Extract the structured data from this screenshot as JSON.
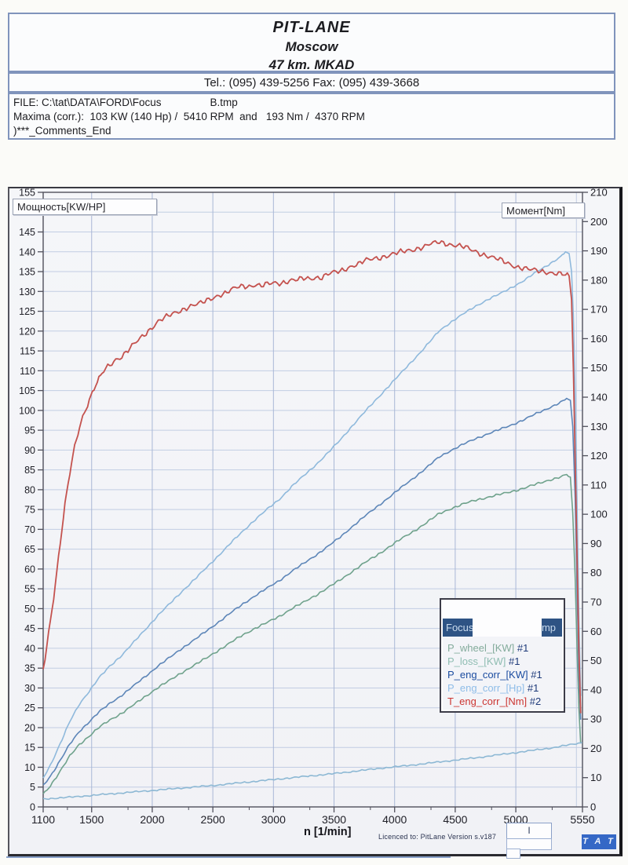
{
  "header": {
    "title1": "PIT-LANE",
    "title2": "Moscow",
    "title3": "47 km. MKAD",
    "tel_line": "Tel.: (095) 439-5256 Fax: (095) 439-3668",
    "file_label": "FILE: C:\\tat\\DATA\\FORD\\Focus",
    "file_suffix": "B.tmp",
    "maxima_line": "Maxima (corr.):  103 KW (140 Hp) /  5410 RPM  and   193 Nm /  4370 RPM",
    "comments_line": ")***_Comments_End"
  },
  "footer": {
    "license_text": "Licenced to: PitLane   Version s.v187",
    "scroll_glyph": "I",
    "logo_text": "T A T"
  },
  "colors": {
    "grid": "#c2cde3",
    "grid_major": "#a9b7d6",
    "axis": "#50505c",
    "tick_text": "#202028",
    "header_border": "#8094bc",
    "titlebar_blue": "#2e5384",
    "logo_blue": "#3568c6",
    "legend_suffix": "#1e3a7a"
  },
  "chart_data": {
    "type": "line",
    "title": "",
    "xlabel": "n [1/min]",
    "x_range": [
      1100,
      5550
    ],
    "x_ticks": [
      1100,
      1500,
      2000,
      2500,
      3000,
      3500,
      4000,
      4500,
      5000,
      5550
    ],
    "grid": true,
    "left_axis": {
      "label": "Мощность[KW/HP]",
      "min": 0,
      "max": 155,
      "step": 5
    },
    "right_axis": {
      "label": "Момент[Nm]",
      "min": 0,
      "max": 210,
      "step": 10
    },
    "legend": {
      "position": "bottom-right",
      "window_title_left": "Focus",
      "window_title_right": "tmp"
    },
    "maxima": {
      "power_kw": 103,
      "power_hp": 140,
      "power_rpm": 5410,
      "torque_nm": 193,
      "torque_rpm": 4370
    },
    "series": [
      {
        "name": "P_wheel_[KW] #1",
        "axis": "left",
        "color": "#6fa28c",
        "legend_color": "#83ab9b",
        "jitter": 0.18,
        "points": [
          [
            1100,
            3.2
          ],
          [
            1160,
            5.4
          ],
          [
            1240,
            9.0
          ],
          [
            1320,
            12.8
          ],
          [
            1400,
            15.8
          ],
          [
            1480,
            17.9
          ],
          [
            1560,
            20.0
          ],
          [
            1650,
            21.9
          ],
          [
            1750,
            23.7
          ],
          [
            1850,
            25.8
          ],
          [
            1950,
            28.0
          ],
          [
            2050,
            30.2
          ],
          [
            2150,
            32.0
          ],
          [
            2250,
            34.0
          ],
          [
            2350,
            35.8
          ],
          [
            2450,
            37.6
          ],
          [
            2550,
            39.6
          ],
          [
            2650,
            41.5
          ],
          [
            2750,
            43.4
          ],
          [
            2850,
            45.1
          ],
          [
            2950,
            46.5
          ],
          [
            3050,
            48.1
          ],
          [
            3150,
            50.0
          ],
          [
            3250,
            51.6
          ],
          [
            3350,
            53.4
          ],
          [
            3450,
            55.3
          ],
          [
            3550,
            57.2
          ],
          [
            3650,
            59.4
          ],
          [
            3750,
            61.5
          ],
          [
            3850,
            63.4
          ],
          [
            3950,
            65.5
          ],
          [
            4050,
            67.5
          ],
          [
            4150,
            69.4
          ],
          [
            4250,
            71.4
          ],
          [
            4370,
            74.0
          ],
          [
            4470,
            75.3
          ],
          [
            4570,
            76.4
          ],
          [
            4670,
            77.4
          ],
          [
            4770,
            78.1
          ],
          [
            4870,
            78.8
          ],
          [
            4970,
            79.6
          ],
          [
            5070,
            80.4
          ],
          [
            5170,
            81.4
          ],
          [
            5270,
            82.4
          ],
          [
            5370,
            83.2
          ],
          [
            5420,
            83.8
          ],
          [
            5450,
            83.0
          ],
          [
            5470,
            74.0
          ],
          [
            5490,
            58.0
          ],
          [
            5505,
            40.0
          ],
          [
            5520,
            25.0
          ],
          [
            5535,
            16.0
          ]
        ]
      },
      {
        "name": "P_loss_[KW] #1",
        "axis": "left",
        "color": "#8db8d4",
        "legend_color": "#8fbdb2",
        "jitter": 0.12,
        "points": [
          [
            1100,
            2.0
          ],
          [
            1300,
            2.4
          ],
          [
            1500,
            2.9
          ],
          [
            1700,
            3.4
          ],
          [
            1900,
            3.9
          ],
          [
            2100,
            4.4
          ],
          [
            2300,
            4.9
          ],
          [
            2500,
            5.4
          ],
          [
            2700,
            6.0
          ],
          [
            2900,
            6.6
          ],
          [
            3100,
            7.2
          ],
          [
            3300,
            7.8
          ],
          [
            3500,
            8.4
          ],
          [
            3700,
            9.1
          ],
          [
            3900,
            9.8
          ],
          [
            4100,
            10.4
          ],
          [
            4300,
            11.1
          ],
          [
            4500,
            11.8
          ],
          [
            4700,
            12.5
          ],
          [
            4900,
            13.3
          ],
          [
            5100,
            14.1
          ],
          [
            5300,
            14.9
          ],
          [
            5450,
            15.7
          ],
          [
            5548,
            16.2
          ]
        ]
      },
      {
        "name": "P_eng_corr_[KW] #1",
        "axis": "left",
        "color": "#5d86b8",
        "legend_color": "#1c4da0",
        "jitter": 0.16,
        "points": [
          [
            1100,
            5.4
          ],
          [
            1160,
            7.8
          ],
          [
            1240,
            11.7
          ],
          [
            1320,
            15.8
          ],
          [
            1400,
            19.1
          ],
          [
            1480,
            21.5
          ],
          [
            1560,
            23.9
          ],
          [
            1650,
            26.1
          ],
          [
            1750,
            28.2
          ],
          [
            1850,
            30.6
          ],
          [
            1950,
            33.1
          ],
          [
            2050,
            35.6
          ],
          [
            2150,
            37.8
          ],
          [
            2250,
            40.1
          ],
          [
            2350,
            42.2
          ],
          [
            2450,
            44.4
          ],
          [
            2550,
            46.7
          ],
          [
            2650,
            49.0
          ],
          [
            2750,
            51.2
          ],
          [
            2850,
            53.3
          ],
          [
            2950,
            55.2
          ],
          [
            3050,
            57.1
          ],
          [
            3150,
            59.4
          ],
          [
            3250,
            61.4
          ],
          [
            3350,
            63.5
          ],
          [
            3450,
            65.7
          ],
          [
            3550,
            68.0
          ],
          [
            3650,
            70.7
          ],
          [
            3750,
            73.2
          ],
          [
            3850,
            75.6
          ],
          [
            3950,
            78.0
          ],
          [
            4050,
            80.4
          ],
          [
            4150,
            82.8
          ],
          [
            4250,
            85.2
          ],
          [
            4370,
            88.3
          ],
          [
            4470,
            90.0
          ],
          [
            4570,
            91.5
          ],
          [
            4670,
            92.9
          ],
          [
            4770,
            94.1
          ],
          [
            4870,
            95.2
          ],
          [
            4970,
            96.4
          ],
          [
            5070,
            97.7
          ],
          [
            5170,
            99.2
          ],
          [
            5270,
            100.6
          ],
          [
            5370,
            102.0
          ],
          [
            5420,
            103.0
          ],
          [
            5450,
            102.3
          ],
          [
            5470,
            96.0
          ],
          [
            5490,
            78.0
          ],
          [
            5505,
            55.0
          ],
          [
            5520,
            34.0
          ],
          [
            5535,
            22.0
          ]
        ]
      },
      {
        "name": "P_eng_corr_[Hp] #1",
        "axis": "left",
        "color": "#8fb9dc",
        "legend_color": "#8fbde8",
        "jitter": 0.16,
        "points": [
          [
            1100,
            7.3
          ],
          [
            1160,
            10.6
          ],
          [
            1240,
            15.9
          ],
          [
            1320,
            21.5
          ],
          [
            1400,
            26.0
          ],
          [
            1480,
            29.2
          ],
          [
            1560,
            32.5
          ],
          [
            1650,
            35.5
          ],
          [
            1750,
            38.3
          ],
          [
            1850,
            41.6
          ],
          [
            1950,
            45.0
          ],
          [
            2050,
            48.4
          ],
          [
            2150,
            51.4
          ],
          [
            2250,
            54.5
          ],
          [
            2350,
            57.4
          ],
          [
            2450,
            60.4
          ],
          [
            2550,
            63.5
          ],
          [
            2650,
            66.6
          ],
          [
            2750,
            69.6
          ],
          [
            2850,
            72.5
          ],
          [
            2950,
            75.1
          ],
          [
            3050,
            77.6
          ],
          [
            3150,
            80.8
          ],
          [
            3250,
            83.5
          ],
          [
            3350,
            86.3
          ],
          [
            3450,
            89.3
          ],
          [
            3550,
            92.5
          ],
          [
            3650,
            96.1
          ],
          [
            3750,
            99.5
          ],
          [
            3850,
            102.8
          ],
          [
            3950,
            106.1
          ],
          [
            4050,
            109.3
          ],
          [
            4150,
            112.6
          ],
          [
            4250,
            115.9
          ],
          [
            4370,
            120.1
          ],
          [
            4470,
            122.4
          ],
          [
            4570,
            124.4
          ],
          [
            4670,
            126.3
          ],
          [
            4770,
            128.0
          ],
          [
            4870,
            129.4
          ],
          [
            4970,
            131.1
          ],
          [
            5070,
            132.8
          ],
          [
            5170,
            134.9
          ],
          [
            5270,
            136.8
          ],
          [
            5370,
            138.7
          ],
          [
            5410,
            140.0
          ],
          [
            5440,
            139.3
          ],
          [
            5460,
            135.0
          ],
          [
            5475,
            124.0
          ],
          [
            5490,
            104.0
          ],
          [
            5505,
            76.0
          ],
          [
            5520,
            48.0
          ],
          [
            5535,
            28.0
          ]
        ]
      },
      {
        "name": "T_eng_corr_[Nm] #2",
        "axis": "right",
        "color": "#c4524e",
        "legend_color": "#cc3531",
        "jitter": 0.62,
        "points": [
          [
            1100,
            47
          ],
          [
            1130,
            55
          ],
          [
            1160,
            64
          ],
          [
            1200,
            76
          ],
          [
            1240,
            90
          ],
          [
            1280,
            103
          ],
          [
            1320,
            114
          ],
          [
            1360,
            123
          ],
          [
            1400,
            130
          ],
          [
            1440,
            135
          ],
          [
            1480,
            139
          ],
          [
            1520,
            143
          ],
          [
            1560,
            146
          ],
          [
            1600,
            149
          ],
          [
            1650,
            151
          ],
          [
            1700,
            153
          ],
          [
            1750,
            154
          ],
          [
            1800,
            156
          ],
          [
            1850,
            158
          ],
          [
            1900,
            160
          ],
          [
            1950,
            162
          ],
          [
            2000,
            164
          ],
          [
            2050,
            166
          ],
          [
            2100,
            167
          ],
          [
            2150,
            168
          ],
          [
            2200,
            169
          ],
          [
            2250,
            170
          ],
          [
            2300,
            171
          ],
          [
            2350,
            171.5
          ],
          [
            2400,
            172
          ],
          [
            2450,
            173
          ],
          [
            2500,
            174
          ],
          [
            2550,
            175
          ],
          [
            2600,
            175.5
          ],
          [
            2650,
            176.5
          ],
          [
            2700,
            177.5
          ],
          [
            2750,
            178
          ],
          [
            2800,
            178
          ],
          [
            2850,
            178.5
          ],
          [
            2900,
            178
          ],
          [
            2950,
            178.5
          ],
          [
            3000,
            179
          ],
          [
            3050,
            179
          ],
          [
            3100,
            179.5
          ],
          [
            3150,
            180
          ],
          [
            3200,
            180
          ],
          [
            3250,
            180.5
          ],
          [
            3300,
            180.5
          ],
          [
            3350,
            181
          ],
          [
            3400,
            181
          ],
          [
            3450,
            182
          ],
          [
            3500,
            182.5
          ],
          [
            3550,
            183
          ],
          [
            3600,
            184
          ],
          [
            3650,
            185
          ],
          [
            3700,
            185.5
          ],
          [
            3750,
            186.5
          ],
          [
            3800,
            187
          ],
          [
            3850,
            187.5
          ],
          [
            3900,
            188
          ],
          [
            3950,
            188.5
          ],
          [
            4000,
            189
          ],
          [
            4050,
            189.5
          ],
          [
            4100,
            190
          ],
          [
            4150,
            190.5
          ],
          [
            4200,
            191
          ],
          [
            4250,
            191.5
          ],
          [
            4300,
            192.3
          ],
          [
            4370,
            193
          ],
          [
            4420,
            192.6
          ],
          [
            4470,
            192.2
          ],
          [
            4520,
            191.8
          ],
          [
            4570,
            191.3
          ],
          [
            4620,
            190.5
          ],
          [
            4670,
            189.8
          ],
          [
            4720,
            189
          ],
          [
            4770,
            188.3
          ],
          [
            4820,
            187.5
          ],
          [
            4870,
            186.8
          ],
          [
            4920,
            186
          ],
          [
            4970,
            185.2
          ],
          [
            5020,
            184.5
          ],
          [
            5070,
            184
          ],
          [
            5120,
            183.5
          ],
          [
            5170,
            183.2
          ],
          [
            5220,
            183
          ],
          [
            5270,
            182.8
          ],
          [
            5320,
            182.4
          ],
          [
            5370,
            182
          ],
          [
            5410,
            181.7
          ],
          [
            5440,
            181
          ],
          [
            5460,
            174
          ],
          [
            5475,
            150
          ],
          [
            5490,
            118
          ],
          [
            5505,
            85
          ],
          [
            5520,
            55
          ],
          [
            5535,
            32
          ]
        ]
      }
    ]
  }
}
